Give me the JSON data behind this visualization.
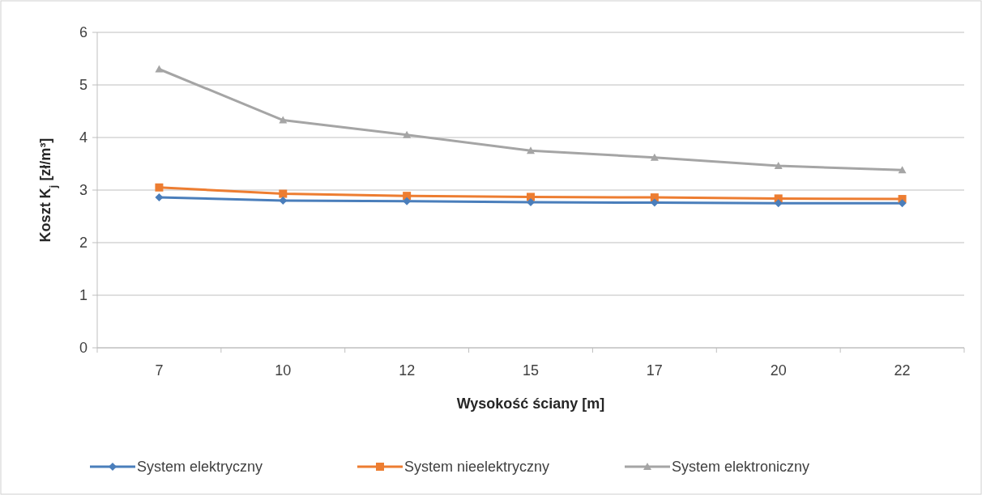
{
  "chart_data": {
    "type": "line",
    "xlabel": "Wysokość ściany [m]",
    "ylabel": "Koszt K$_{j}$ [zł/m³]",
    "categories": [
      "7",
      "10",
      "12",
      "15",
      "17",
      "20",
      "22"
    ],
    "series": [
      {
        "name": "System elektryczny",
        "color": "#4a7ebb",
        "marker": "diamond",
        "values": [
          2.86,
          2.8,
          2.79,
          2.77,
          2.76,
          2.75,
          2.75
        ]
      },
      {
        "name": "System nieelektryczny",
        "color": "#ed7d31",
        "marker": "square",
        "values": [
          3.05,
          2.93,
          2.89,
          2.87,
          2.86,
          2.84,
          2.83
        ]
      },
      {
        "name": "System elektroniczny",
        "color": "#a5a5a5",
        "marker": "triangle",
        "values": [
          5.3,
          4.33,
          4.05,
          3.75,
          3.62,
          3.46,
          3.38
        ]
      }
    ],
    "ylim": [
      0,
      6
    ],
    "yticks": [
      0,
      1,
      2,
      3,
      4,
      5,
      6
    ],
    "grid": "y",
    "legend": "bottom",
    "line_style": "solid"
  }
}
